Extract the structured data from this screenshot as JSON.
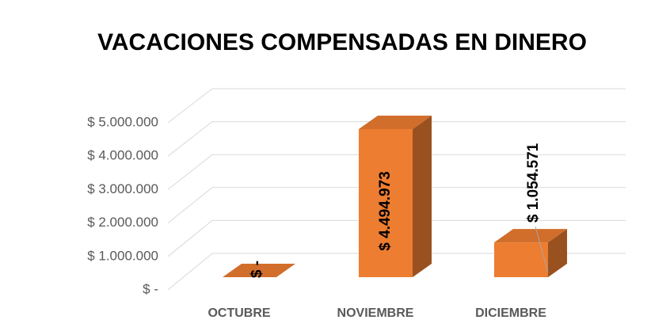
{
  "chart_data": {
    "type": "bar3d",
    "title": "VACACIONES COMPENSADAS EN DINERO",
    "categories": [
      "OCTUBRE",
      "NOVIEMBRE",
      "DICIEMBRE"
    ],
    "values": [
      0,
      4494973,
      1054571
    ],
    "value_labels": [
      "$ -",
      "$ 4.494.973",
      "$ 1.054.571"
    ],
    "color": "#ed7d31",
    "ylim": [
      0,
      5000000
    ],
    "yticks": [
      {
        "value": 0,
        "label": "$ -"
      },
      {
        "value": 1000000,
        "label": "$ 1.000.000"
      },
      {
        "value": 2000000,
        "label": "$ 2.000.000"
      },
      {
        "value": 3000000,
        "label": "$ 3.000.000"
      },
      {
        "value": 4000000,
        "label": "$ 4.000.000"
      },
      {
        "value": 5000000,
        "label": "$ 5.000.000"
      }
    ],
    "grid": true
  }
}
